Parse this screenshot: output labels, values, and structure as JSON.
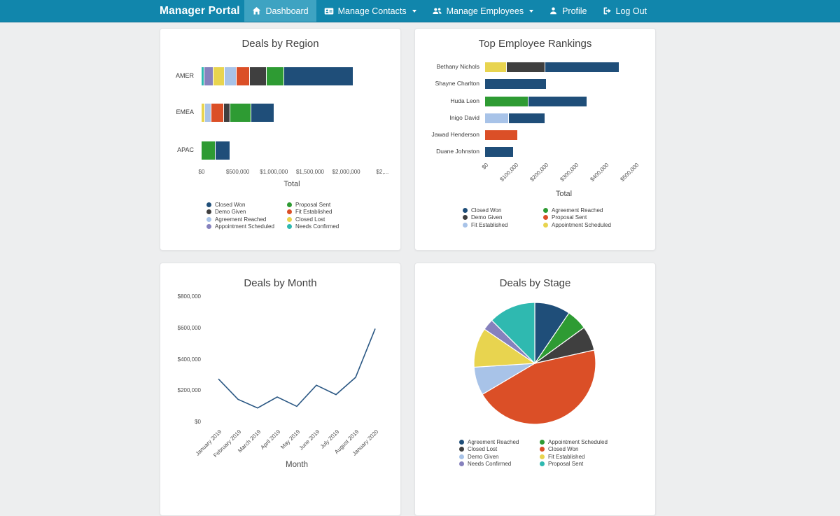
{
  "navbar": {
    "brand": "Manager Portal",
    "items": [
      {
        "label": "Dashboard",
        "icon": "home-icon",
        "active": true,
        "caret": false
      },
      {
        "label": "Manage Contacts",
        "icon": "address-card-icon",
        "active": false,
        "caret": true
      },
      {
        "label": "Manage Employees",
        "icon": "users-icon",
        "active": false,
        "caret": true
      },
      {
        "label": "Profile",
        "icon": "user-icon",
        "active": false,
        "caret": false
      },
      {
        "label": "Log Out",
        "icon": "sign-out-icon",
        "active": false,
        "caret": false
      }
    ]
  },
  "colors": {
    "navbar_bg": "#1186AC",
    "navbar_active_bg": "#3EA3C2",
    "page_bg": "#EDEEEF",
    "card_bg": "#FFFFFF",
    "navy": "#1F4E79",
    "dark_gray": "#3F3F3F",
    "light_blue": "#A8C3E8",
    "purple": "#8681BD",
    "green": "#2E9B33",
    "orange": "#DB4F27",
    "yellow": "#E8D44F",
    "teal": "#2FB9B0",
    "line": "#2A5783"
  },
  "chart_data": [
    {
      "id": "deals_by_region",
      "type": "bar",
      "orientation": "horizontal",
      "stacked": true,
      "title": "Deals by Region",
      "xlabel": "Total",
      "categories": [
        "AMER",
        "EMEA",
        "APAC"
      ],
      "series": [
        {
          "name": "Needs Confirmed",
          "color": "#2FB9B0",
          "values": [
            40000,
            0,
            0
          ]
        },
        {
          "name": "Appointment Scheduled",
          "color": "#8681BD",
          "values": [
            120000,
            0,
            0
          ]
        },
        {
          "name": "Closed Lost",
          "color": "#E8D44F",
          "values": [
            160000,
            45000,
            0
          ]
        },
        {
          "name": "Agreement Reached",
          "color": "#A8C3E8",
          "values": [
            160000,
            95000,
            0
          ]
        },
        {
          "name": "Fit Established",
          "color": "#DB4F27",
          "values": [
            190000,
            165000,
            0
          ]
        },
        {
          "name": "Demo Given",
          "color": "#3F3F3F",
          "values": [
            235000,
            90000,
            0
          ]
        },
        {
          "name": "Proposal Sent",
          "color": "#2E9B33",
          "values": [
            240000,
            290000,
            195000
          ]
        },
        {
          "name": "Closed Won",
          "color": "#1F4E79",
          "values": [
            960000,
            320000,
            205000
          ]
        }
      ],
      "x_ticks": [
        "$0",
        "$500,000",
        "$1,000,000",
        "$1,500,000",
        "$2,000,000",
        "$2,..."
      ],
      "x_tick_values": [
        0,
        500000,
        1000000,
        1500000,
        2000000,
        2500000
      ],
      "legend_rows": 4,
      "legend": [
        {
          "label": "Closed Won",
          "color": "#1F4E79"
        },
        {
          "label": "Demo Given",
          "color": "#3F3F3F"
        },
        {
          "label": "Agreement Reached",
          "color": "#A8C3E8"
        },
        {
          "label": "Appointment Scheduled",
          "color": "#8681BD"
        },
        {
          "label": "Proposal Sent",
          "color": "#2E9B33"
        },
        {
          "label": "Fit Established",
          "color": "#DB4F27"
        },
        {
          "label": "Closed Lost",
          "color": "#E8D44F"
        },
        {
          "label": "Needs Confirmed",
          "color": "#2FB9B0"
        }
      ]
    },
    {
      "id": "top_employee_rankings",
      "type": "bar",
      "orientation": "horizontal",
      "stacked": true,
      "title": "Top Employee Rankings",
      "xlabel": "Total",
      "categories": [
        "Bethany Nichols",
        "Shayne Charlton",
        "Huda Leon",
        "Inigo David",
        "Jawad Henderson",
        "Duane Johnston"
      ],
      "series": [
        {
          "name": "Appointment Scheduled",
          "color": "#E8D44F",
          "values": [
            72000,
            0,
            0,
            0,
            0,
            0
          ]
        },
        {
          "name": "Demo Given",
          "color": "#3F3F3F",
          "values": [
            128000,
            0,
            0,
            0,
            0,
            0
          ]
        },
        {
          "name": "Agreement Reached",
          "color": "#2E9B33",
          "values": [
            0,
            0,
            145000,
            0,
            0,
            0
          ]
        },
        {
          "name": "Fit Established",
          "color": "#A8C3E8",
          "values": [
            0,
            0,
            0,
            78000,
            0,
            0
          ]
        },
        {
          "name": "Proposal Sent",
          "color": "#DB4F27",
          "values": [
            0,
            0,
            0,
            0,
            110000,
            0
          ]
        },
        {
          "name": "Closed Won",
          "color": "#1F4E79",
          "values": [
            246000,
            205000,
            195000,
            122000,
            0,
            95000
          ]
        }
      ],
      "x_ticks": [
        "$0",
        "$100,000",
        "$200,000",
        "$300,000",
        "$400,000",
        "$500,000"
      ],
      "x_tick_values": [
        0,
        100000,
        200000,
        300000,
        400000,
        500000
      ],
      "legend_rows": 3,
      "legend": [
        {
          "label": "Closed Won",
          "color": "#1F4E79"
        },
        {
          "label": "Demo Given",
          "color": "#3F3F3F"
        },
        {
          "label": "Fit Established",
          "color": "#A8C3E8"
        },
        {
          "label": "Agreement Reached",
          "color": "#2E9B33"
        },
        {
          "label": "Proposal Sent",
          "color": "#DB4F27"
        },
        {
          "label": "Appointment Scheduled",
          "color": "#E8D44F"
        }
      ]
    },
    {
      "id": "deals_by_month",
      "type": "line",
      "title": "Deals by Month",
      "xlabel": "Month",
      "x": [
        "January 2019",
        "February 2019",
        "March 2019",
        "April 2019",
        "May 2019",
        "June 2019",
        "July 2019",
        "August 2019",
        "January 2020"
      ],
      "values": [
        280000,
        150000,
        95000,
        165000,
        105000,
        240000,
        180000,
        290000,
        600000
      ],
      "y_ticks": [
        "$800,000",
        "$600,000",
        "$400,000",
        "$200,000",
        "$0"
      ],
      "ylim": [
        0,
        800000
      ],
      "color": "#2A5783"
    },
    {
      "id": "deals_by_stage",
      "type": "pie",
      "title": "Deals by Stage",
      "slices": [
        {
          "label": "Agreement Reached",
          "color": "#1F4E79",
          "pct": 9.5
        },
        {
          "label": "Appointment Scheduled",
          "color": "#2E9B33",
          "pct": 5.5
        },
        {
          "label": "Closed Lost",
          "color": "#3F3F3F",
          "pct": 6.5
        },
        {
          "label": "Closed Won",
          "color": "#DB4F27",
          "pct": 45
        },
        {
          "label": "Demo Given",
          "color": "#A8C3E8",
          "pct": 7.5
        },
        {
          "label": "Fit Established",
          "color": "#E8D44F",
          "pct": 10.5
        },
        {
          "label": "Needs Confirmed",
          "color": "#8681BD",
          "pct": 3
        },
        {
          "label": "Proposal Sent",
          "color": "#2FB9B0",
          "pct": 12.5
        }
      ],
      "legend_rows": 4,
      "legend": [
        {
          "label": "Agreement Reached",
          "color": "#1F4E79"
        },
        {
          "label": "Closed Lost",
          "color": "#3F3F3F"
        },
        {
          "label": "Demo Given",
          "color": "#A8C3E8"
        },
        {
          "label": "Needs Confirmed",
          "color": "#8681BD"
        },
        {
          "label": "Appointment Scheduled",
          "color": "#2E9B33"
        },
        {
          "label": "Closed Won",
          "color": "#DB4F27"
        },
        {
          "label": "Fit Established",
          "color": "#E8D44F"
        },
        {
          "label": "Proposal Sent",
          "color": "#2FB9B0"
        }
      ]
    }
  ]
}
